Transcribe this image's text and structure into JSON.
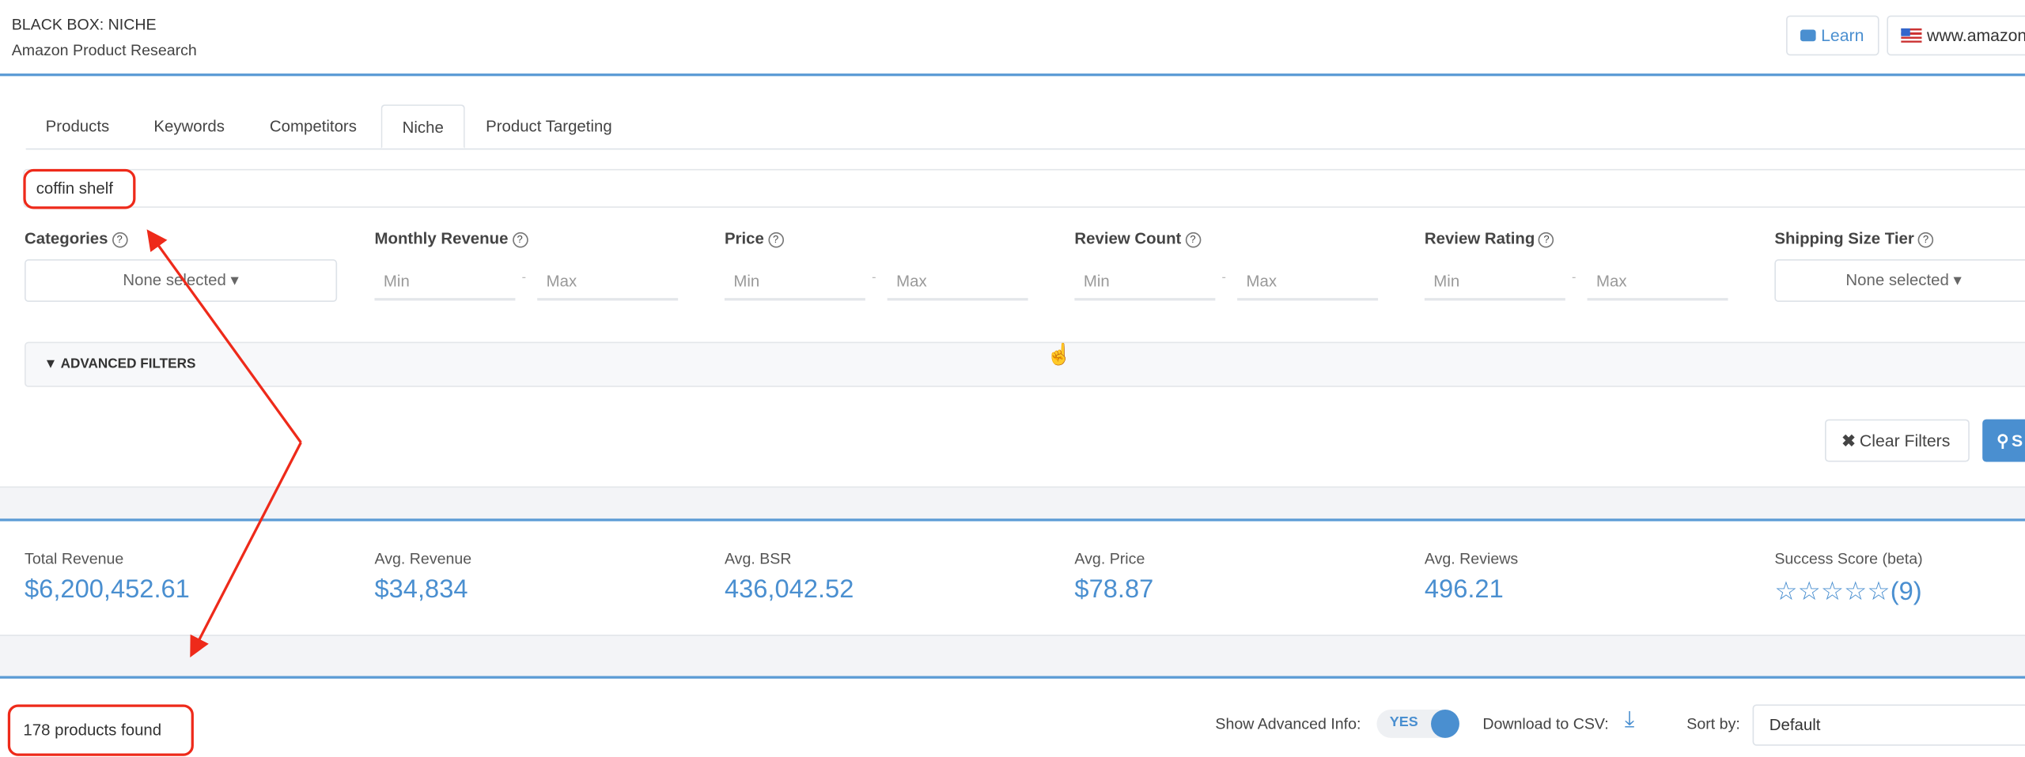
{
  "header": {
    "title": "BLACK BOX: NICHE",
    "subtitle": "Amazon Product Research",
    "learn_label": "Learn",
    "learn_icon": "video-camera-icon",
    "marketplace_label": "www.amazon",
    "marketplace_icon": "us-flag-icon"
  },
  "tabs": [
    {
      "label": "Products"
    },
    {
      "label": "Keywords"
    },
    {
      "label": "Competitors"
    },
    {
      "label": "Niche",
      "active": true
    },
    {
      "label": "Product Targeting"
    }
  ],
  "search": {
    "value": "coffin shelf"
  },
  "filters": {
    "categories": {
      "label": "Categories",
      "value": "None selected"
    },
    "monthly_revenue": {
      "label": "Monthly Revenue",
      "min_placeholder": "Min",
      "max_placeholder": "Max"
    },
    "price": {
      "label": "Price",
      "min_placeholder": "Min",
      "max_placeholder": "Max"
    },
    "review_count": {
      "label": "Review Count",
      "min_placeholder": "Min",
      "max_placeholder": "Max"
    },
    "review_rating": {
      "label": "Review Rating",
      "min_placeholder": "Min",
      "max_placeholder": "Max"
    },
    "shipping_size_tier": {
      "label": "Shipping Size Tier",
      "value": "None selected"
    },
    "dash": "-",
    "advanced_label": "ADVANCED FILTERS",
    "clear_label": "Clear Filters",
    "search_label": "S"
  },
  "stats": [
    {
      "label": "Total Revenue",
      "value": "$6,200,452.61"
    },
    {
      "label": "Avg. Revenue",
      "value": "$34,834"
    },
    {
      "label": "Avg. BSR",
      "value": "436,042.52"
    },
    {
      "label": "Avg. Price",
      "value": "$78.87"
    },
    {
      "label": "Avg. Reviews",
      "value": "496.21"
    },
    {
      "label": "Success Score (beta)",
      "value": "☆☆☆☆☆(9)"
    }
  ],
  "results": {
    "count_label": "178 products found",
    "advanced_info_label": "Show Advanced Info:",
    "advanced_info_value": "YES",
    "csv_label": "Download to CSV:",
    "sort_label": "Sort by:",
    "sort_value": "Default"
  },
  "colors": {
    "accent": "#4a8fd0",
    "annotation": "#ee2a1a"
  }
}
